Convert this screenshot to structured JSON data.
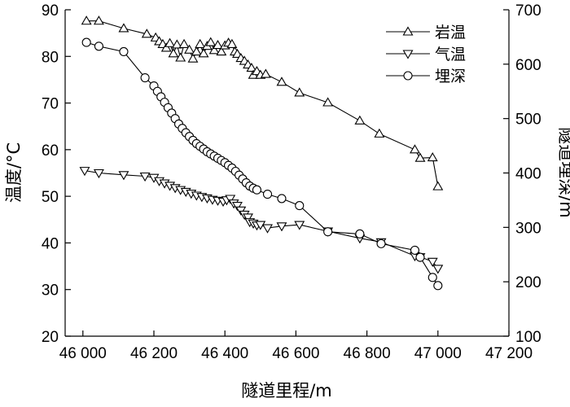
{
  "chart_data": {
    "type": "line",
    "xlabel": "隧道里程/m",
    "ylabel_left": "温度/°C",
    "ylabel_right": "隧道埋深/m",
    "xlim": [
      45950,
      47200
    ],
    "ylim_left": [
      20,
      90
    ],
    "ylim_right": [
      100,
      700
    ],
    "x_ticks": [
      46000,
      46200,
      46400,
      46600,
      46800,
      47000,
      47200
    ],
    "x_tick_labels": [
      "46 000",
      "46 200",
      "46 400",
      "46 600",
      "46 800",
      "47 000",
      "47 200"
    ],
    "y_left_ticks": [
      20,
      30,
      40,
      50,
      60,
      70,
      80,
      90
    ],
    "y_left_tick_labels": [
      "20",
      "30",
      "40",
      "50",
      "60",
      "70",
      "80",
      "90"
    ],
    "y_right_ticks": [
      100,
      200,
      300,
      400,
      500,
      600,
      700
    ],
    "y_right_tick_labels": [
      "100",
      "200",
      "300",
      "400",
      "500",
      "600",
      "700"
    ],
    "grid": false,
    "legend_position": "top-right",
    "series": [
      {
        "name": "岩温",
        "axis": "left",
        "marker": "triangle-up",
        "points": [
          [
            46010,
            87.6
          ],
          [
            46045,
            87.6
          ],
          [
            46115,
            86.0
          ],
          [
            46180,
            84.8
          ],
          [
            46205,
            84.0
          ],
          [
            46215,
            83.2
          ],
          [
            46225,
            82.6
          ],
          [
            46235,
            81.8
          ],
          [
            46245,
            82.8
          ],
          [
            46255,
            80.6
          ],
          [
            46265,
            82.5
          ],
          [
            46275,
            79.7
          ],
          [
            46285,
            82.6
          ],
          [
            46300,
            81.4
          ],
          [
            46310,
            79.5
          ],
          [
            46320,
            81.0
          ],
          [
            46330,
            82.6
          ],
          [
            46340,
            80.6
          ],
          [
            46350,
            82.2
          ],
          [
            46360,
            83.0
          ],
          [
            46370,
            81.3
          ],
          [
            46380,
            82.4
          ],
          [
            46390,
            81.0
          ],
          [
            46400,
            82.3
          ],
          [
            46410,
            82.9
          ],
          [
            46420,
            82.6
          ],
          [
            46428,
            81.0
          ],
          [
            46435,
            80.5
          ],
          [
            46445,
            79.6
          ],
          [
            46455,
            79.0
          ],
          [
            46465,
            78.2
          ],
          [
            46475,
            77.5
          ],
          [
            46480,
            76.0
          ],
          [
            46490,
            76.8
          ],
          [
            46500,
            76.0
          ],
          [
            46515,
            76.2
          ],
          [
            46560,
            74.5
          ],
          [
            46610,
            72.2
          ],
          [
            46690,
            70.1
          ],
          [
            46780,
            66.2
          ],
          [
            46835,
            63.4
          ],
          [
            46935,
            60.0
          ],
          [
            46950,
            58.2
          ],
          [
            46985,
            58.3
          ],
          [
            47000,
            52.1
          ]
        ]
      },
      {
        "name": "气温",
        "axis": "left",
        "marker": "triangle-down",
        "points": [
          [
            46005,
            55.5
          ],
          [
            46045,
            55.0
          ],
          [
            46115,
            54.6
          ],
          [
            46175,
            54.3
          ],
          [
            46200,
            54.0
          ],
          [
            46215,
            53.3
          ],
          [
            46230,
            52.8
          ],
          [
            46245,
            52.3
          ],
          [
            46260,
            51.8
          ],
          [
            46275,
            51.4
          ],
          [
            46290,
            51.0
          ],
          [
            46305,
            50.6
          ],
          [
            46320,
            50.2
          ],
          [
            46335,
            49.9
          ],
          [
            46350,
            49.6
          ],
          [
            46365,
            49.3
          ],
          [
            46380,
            49.1
          ],
          [
            46395,
            48.9
          ],
          [
            46405,
            49.2
          ],
          [
            46415,
            49.5
          ],
          [
            46425,
            48.5
          ],
          [
            46435,
            48.0
          ],
          [
            46445,
            47.0
          ],
          [
            46455,
            46.1
          ],
          [
            46465,
            45.5
          ],
          [
            46470,
            44.5
          ],
          [
            46480,
            44.2
          ],
          [
            46490,
            43.8
          ],
          [
            46500,
            43.9
          ],
          [
            46520,
            43.2
          ],
          [
            46560,
            43.6
          ],
          [
            46610,
            43.9
          ],
          [
            46690,
            42.5
          ],
          [
            46780,
            41.0
          ],
          [
            46840,
            40.2
          ],
          [
            46935,
            37.2
          ],
          [
            46950,
            37.0
          ],
          [
            46985,
            36.0
          ],
          [
            47000,
            34.5
          ]
        ]
      },
      {
        "name": "埋深",
        "axis": "right",
        "marker": "circle",
        "points": [
          [
            46010,
            640
          ],
          [
            46045,
            633
          ],
          [
            46115,
            623
          ],
          [
            46175,
            575
          ],
          [
            46200,
            560
          ],
          [
            46210,
            550
          ],
          [
            46220,
            540
          ],
          [
            46230,
            530
          ],
          [
            46240,
            520
          ],
          [
            46250,
            510
          ],
          [
            46260,
            500
          ],
          [
            46270,
            490
          ],
          [
            46280,
            482
          ],
          [
            46290,
            474
          ],
          [
            46300,
            467
          ],
          [
            46310,
            460
          ],
          [
            46320,
            454
          ],
          [
            46330,
            449
          ],
          [
            46340,
            444
          ],
          [
            46350,
            439
          ],
          [
            46360,
            435
          ],
          [
            46370,
            431
          ],
          [
            46380,
            427
          ],
          [
            46390,
            423
          ],
          [
            46400,
            419
          ],
          [
            46410,
            414
          ],
          [
            46420,
            409
          ],
          [
            46430,
            403
          ],
          [
            46440,
            396
          ],
          [
            46450,
            389
          ],
          [
            46460,
            382
          ],
          [
            46470,
            376
          ],
          [
            46480,
            372
          ],
          [
            46490,
            369
          ],
          [
            46520,
            361
          ],
          [
            46560,
            353
          ],
          [
            46610,
            340
          ],
          [
            46690,
            292
          ],
          [
            46780,
            288
          ],
          [
            46840,
            270
          ],
          [
            46935,
            258
          ],
          [
            46950,
            245
          ],
          [
            46985,
            208
          ],
          [
            47000,
            193
          ]
        ]
      }
    ]
  }
}
